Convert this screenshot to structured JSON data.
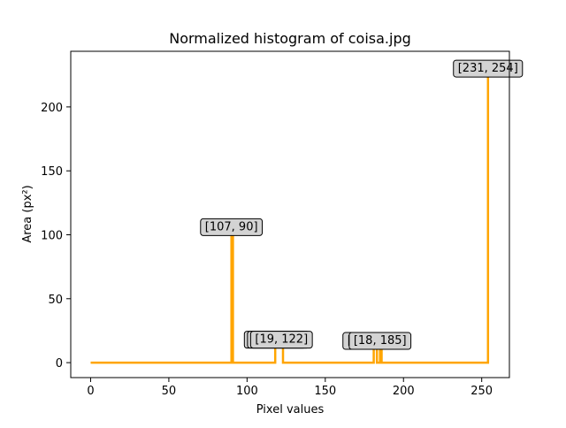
{
  "chart_data": {
    "type": "line",
    "title": "Normalized histogram of coisa.jpg",
    "xlabel": "Pixel values",
    "ylabel": "Area (px²)",
    "xlim": [
      -12.7,
      267.7
    ],
    "ylim": [
      -11.7,
      243.5
    ],
    "x_ticks": [
      0,
      50,
      100,
      150,
      200,
      250
    ],
    "y_ticks": [
      0,
      50,
      100,
      150,
      200
    ],
    "grid": false,
    "series": [
      {
        "color": "#ffa500",
        "x": [
          0,
          89,
          89,
          90,
          90,
          91,
          91,
          117,
          117,
          118,
          118,
          119,
          119,
          120,
          120,
          121,
          121,
          122,
          122,
          123,
          123,
          180,
          180,
          181,
          181,
          183,
          183,
          184,
          184,
          185,
          185,
          186,
          186,
          253,
          253,
          254,
          254,
          255
        ],
        "y": [
          0,
          0,
          0,
          0,
          107,
          107,
          0,
          0,
          0,
          0,
          15,
          15,
          15,
          15,
          15,
          15,
          15,
          15,
          15,
          15,
          0,
          0,
          0,
          0,
          15,
          15,
          0,
          0,
          0,
          0,
          15,
          15,
          0,
          0,
          0,
          0,
          231,
          231
        ]
      }
    ],
    "annotations": [
      {
        "text": "[107, 90]",
        "x": 90,
        "y": 107
      },
      {
        "text": "[19, 122]",
        "x": 118,
        "y": 19
      },
      {
        "text": "[19, 122]",
        "x": 120,
        "y": 19
      },
      {
        "text": "[19, 122]",
        "x": 122,
        "y": 19
      },
      {
        "text": "[18, 185]",
        "x": 181,
        "y": 18
      },
      {
        "text": "[18, 185]",
        "x": 185,
        "y": 18
      },
      {
        "text": "[231, 254]",
        "x": 254,
        "y": 231
      }
    ]
  }
}
